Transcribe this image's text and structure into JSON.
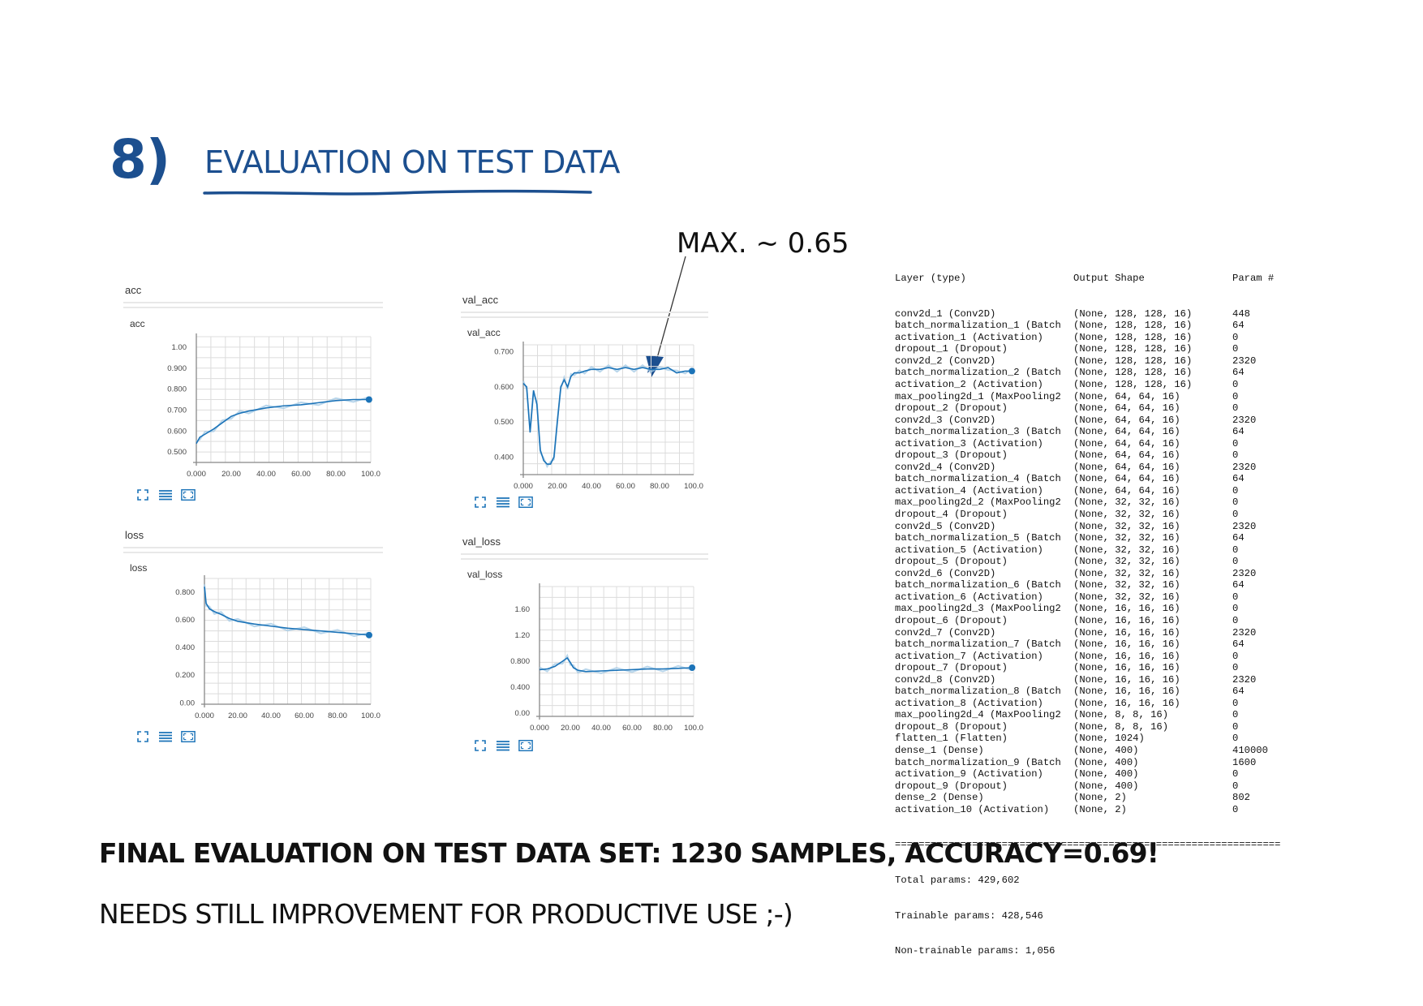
{
  "header": {
    "number": "8)",
    "title": "EVALUATION ON TEST DATA"
  },
  "annotation": "MAX. ~ 0.65",
  "colors": {
    "accent": "#1c4f8f",
    "series": "#1b73b8",
    "series_light": "#a8cce6"
  },
  "icons": [
    "expand-icon",
    "list-icon",
    "fit-to-data-icon"
  ],
  "chart_data": [
    {
      "type": "line",
      "section_title": "acc",
      "title": "acc",
      "xlim": [
        0,
        100
      ],
      "ylim": [
        0.45,
        1.05
      ],
      "x_ticks": [
        "0.000",
        "20.00",
        "40.00",
        "60.00",
        "80.00",
        "100.0"
      ],
      "y_ticks": [
        0.5,
        0.6,
        0.7,
        0.8,
        0.9,
        1.0
      ],
      "y_tick_labels": [
        "0.500",
        "0.600",
        "0.700",
        "0.800",
        "0.900",
        "1.00"
      ],
      "x": [
        0,
        2,
        5,
        10,
        15,
        20,
        25,
        30,
        40,
        50,
        60,
        70,
        80,
        90,
        99
      ],
      "values": [
        0.54,
        0.57,
        0.585,
        0.61,
        0.64,
        0.67,
        0.685,
        0.695,
        0.71,
        0.72,
        0.725,
        0.735,
        0.745,
        0.75,
        0.75
      ],
      "grid": true
    },
    {
      "type": "line",
      "section_title": "loss",
      "title": "loss",
      "xlim": [
        0,
        100
      ],
      "ylim": [
        -0.01,
        0.9
      ],
      "x_ticks": [
        "0.000",
        "20.00",
        "40.00",
        "60.00",
        "80.00",
        "100.0"
      ],
      "y_ticks": [
        0,
        0.2,
        0.4,
        0.6,
        0.8
      ],
      "y_tick_labels": [
        "0.00",
        "0.200",
        "0.400",
        "0.600",
        "0.800"
      ],
      "x": [
        0,
        1,
        3,
        6,
        10,
        15,
        20,
        30,
        40,
        50,
        60,
        70,
        80,
        90,
        99
      ],
      "values": [
        0.84,
        0.72,
        0.68,
        0.66,
        0.64,
        0.61,
        0.59,
        0.57,
        0.555,
        0.54,
        0.53,
        0.52,
        0.51,
        0.5,
        0.49
      ],
      "grid": true
    },
    {
      "type": "line",
      "section_title": "val_acc",
      "title": "val_acc",
      "xlim": [
        0,
        100
      ],
      "ylim": [
        0.35,
        0.72
      ],
      "x_ticks": [
        "0.000",
        "20.00",
        "40.00",
        "60.00",
        "80.00",
        "100.0"
      ],
      "y_ticks": [
        0.4,
        0.5,
        0.6,
        0.7
      ],
      "y_tick_labels": [
        "0.400",
        "0.500",
        "0.600",
        "0.700"
      ],
      "x": [
        0,
        2,
        4,
        6,
        8,
        10,
        12,
        14,
        16,
        18,
        20,
        22,
        24,
        26,
        28,
        30,
        33,
        36,
        40,
        45,
        50,
        55,
        60,
        65,
        70,
        75,
        80,
        85,
        90,
        95,
        99
      ],
      "values": [
        0.61,
        0.6,
        0.47,
        0.59,
        0.55,
        0.42,
        0.39,
        0.38,
        0.38,
        0.4,
        0.5,
        0.6,
        0.62,
        0.6,
        0.63,
        0.64,
        0.64,
        0.645,
        0.65,
        0.65,
        0.655,
        0.65,
        0.655,
        0.65,
        0.655,
        0.65,
        0.65,
        0.655,
        0.64,
        0.645,
        0.645
      ],
      "grid": true
    },
    {
      "type": "line",
      "section_title": "val_loss",
      "title": "val_loss",
      "xlim": [
        0,
        100
      ],
      "ylim": [
        -0.05,
        1.95
      ],
      "x_ticks": [
        "0.000",
        "20.00",
        "40.00",
        "60.00",
        "80.00",
        "100.0"
      ],
      "y_ticks": [
        0,
        0.4,
        0.8,
        1.2,
        1.6
      ],
      "y_tick_labels": [
        "0.00",
        "0.400",
        "0.800",
        "1.20",
        "1.60"
      ],
      "x": [
        0,
        5,
        10,
        15,
        18,
        20,
        22,
        25,
        30,
        40,
        50,
        60,
        70,
        80,
        90,
        99
      ],
      "values": [
        0.67,
        0.68,
        0.72,
        0.8,
        0.85,
        0.78,
        0.7,
        0.66,
        0.64,
        0.65,
        0.66,
        0.67,
        0.68,
        0.68,
        0.69,
        0.7
      ],
      "grid": true
    }
  ],
  "model_summary": {
    "header": [
      "Layer (type)",
      "Output Shape",
      "Param #"
    ],
    "rows": [
      [
        "conv2d_1 (Conv2D)",
        "(None, 128, 128, 16)",
        "448"
      ],
      [
        "batch_normalization_1 (Batch",
        "(None, 128, 128, 16)",
        "64"
      ],
      [
        "activation_1 (Activation)",
        "(None, 128, 128, 16)",
        "0"
      ],
      [
        "dropout_1 (Dropout)",
        "(None, 128, 128, 16)",
        "0"
      ],
      [
        "conv2d_2 (Conv2D)",
        "(None, 128, 128, 16)",
        "2320"
      ],
      [
        "batch_normalization_2 (Batch",
        "(None, 128, 128, 16)",
        "64"
      ],
      [
        "activation_2 (Activation)",
        "(None, 128, 128, 16)",
        "0"
      ],
      [
        "max_pooling2d_1 (MaxPooling2",
        "(None, 64, 64, 16)",
        "0"
      ],
      [
        "dropout_2 (Dropout)",
        "(None, 64, 64, 16)",
        "0"
      ],
      [
        "conv2d_3 (Conv2D)",
        "(None, 64, 64, 16)",
        "2320"
      ],
      [
        "batch_normalization_3 (Batch",
        "(None, 64, 64, 16)",
        "64"
      ],
      [
        "activation_3 (Activation)",
        "(None, 64, 64, 16)",
        "0"
      ],
      [
        "dropout_3 (Dropout)",
        "(None, 64, 64, 16)",
        "0"
      ],
      [
        "conv2d_4 (Conv2D)",
        "(None, 64, 64, 16)",
        "2320"
      ],
      [
        "batch_normalization_4 (Batch",
        "(None, 64, 64, 16)",
        "64"
      ],
      [
        "activation_4 (Activation)",
        "(None, 64, 64, 16)",
        "0"
      ],
      [
        "max_pooling2d_2 (MaxPooling2",
        "(None, 32, 32, 16)",
        "0"
      ],
      [
        "dropout_4 (Dropout)",
        "(None, 32, 32, 16)",
        "0"
      ],
      [
        "conv2d_5 (Conv2D)",
        "(None, 32, 32, 16)",
        "2320"
      ],
      [
        "batch_normalization_5 (Batch",
        "(None, 32, 32, 16)",
        "64"
      ],
      [
        "activation_5 (Activation)",
        "(None, 32, 32, 16)",
        "0"
      ],
      [
        "dropout_5 (Dropout)",
        "(None, 32, 32, 16)",
        "0"
      ],
      [
        "conv2d_6 (Conv2D)",
        "(None, 32, 32, 16)",
        "2320"
      ],
      [
        "batch_normalization_6 (Batch",
        "(None, 32, 32, 16)",
        "64"
      ],
      [
        "activation_6 (Activation)",
        "(None, 32, 32, 16)",
        "0"
      ],
      [
        "max_pooling2d_3 (MaxPooling2",
        "(None, 16, 16, 16)",
        "0"
      ],
      [
        "dropout_6 (Dropout)",
        "(None, 16, 16, 16)",
        "0"
      ],
      [
        "conv2d_7 (Conv2D)",
        "(None, 16, 16, 16)",
        "2320"
      ],
      [
        "batch_normalization_7 (Batch",
        "(None, 16, 16, 16)",
        "64"
      ],
      [
        "activation_7 (Activation)",
        "(None, 16, 16, 16)",
        "0"
      ],
      [
        "dropout_7 (Dropout)",
        "(None, 16, 16, 16)",
        "0"
      ],
      [
        "conv2d_8 (Conv2D)",
        "(None, 16, 16, 16)",
        "2320"
      ],
      [
        "batch_normalization_8 (Batch",
        "(None, 16, 16, 16)",
        "64"
      ],
      [
        "activation_8 (Activation)",
        "(None, 16, 16, 16)",
        "0"
      ],
      [
        "max_pooling2d_4 (MaxPooling2",
        "(None, 8, 8, 16)",
        "0"
      ],
      [
        "dropout_8 (Dropout)",
        "(None, 8, 8, 16)",
        "0"
      ],
      [
        "flatten_1 (Flatten)",
        "(None, 1024)",
        "0"
      ],
      [
        "dense_1 (Dense)",
        "(None, 400)",
        "410000"
      ],
      [
        "batch_normalization_9 (Batch",
        "(None, 400)",
        "1600"
      ],
      [
        "activation_9 (Activation)",
        "(None, 400)",
        "0"
      ],
      [
        "dropout_9 (Dropout)",
        "(None, 400)",
        "0"
      ],
      [
        "dense_2 (Dense)",
        "(None, 2)",
        "802"
      ],
      [
        "activation_10 (Activation)",
        "(None, 2)",
        "0"
      ]
    ],
    "separator": "=================================================================",
    "totals": [
      "Total params: 429,602",
      "Trainable params: 428,546",
      "Non-trainable params: 1,056"
    ]
  },
  "final_evaluation": "FINAL EVALUATION ON TEST DATA SET: 1230 SAMPLES, ACCURACY=0.69!",
  "note": "NEEDS STILL IMPROVEMENT FOR PRODUCTIVE USE ;-)"
}
